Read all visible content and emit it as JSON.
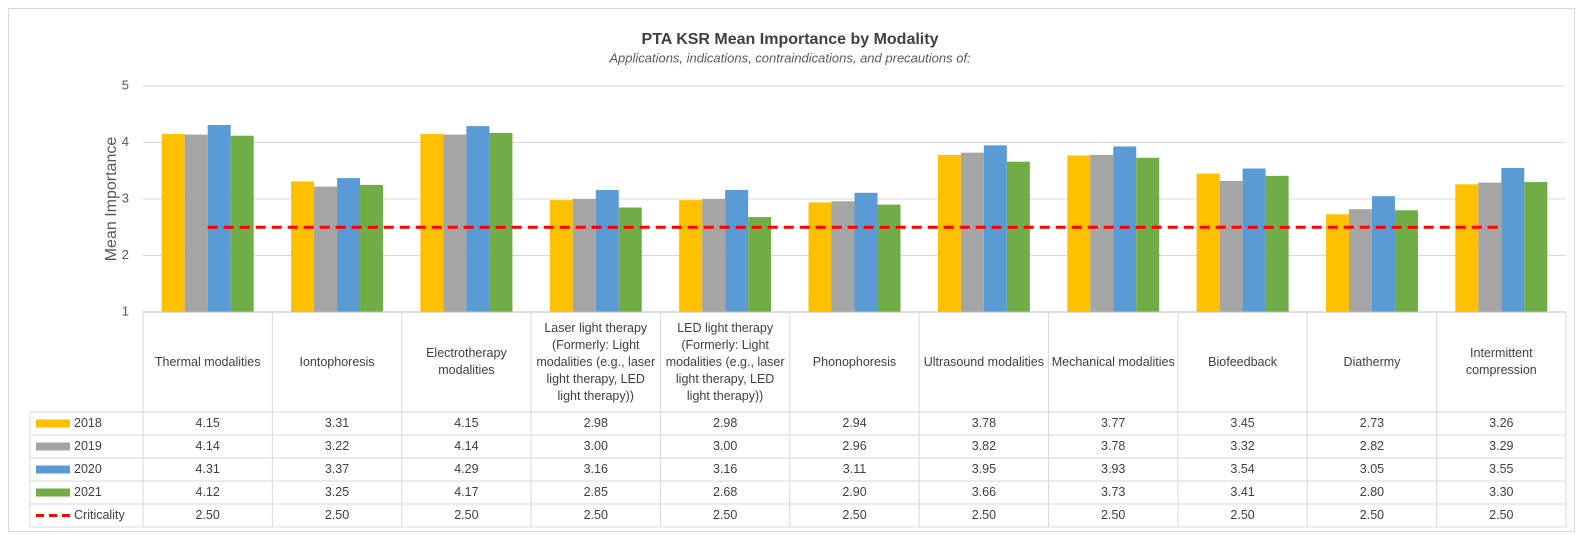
{
  "chart_data": {
    "type": "bar",
    "title": "PTA KSR Mean Importance by Modality",
    "subtitle": "Applications, indications, contraindications, and precautions of:",
    "y_label": "Mean Importance",
    "categories": [
      "Thermal modalities",
      "Iontophoresis",
      "Electrotherapy modalities",
      "Laser light therapy (Formerly: Light modalities (e.g., laser light therapy, LED light therapy))",
      "LED light therapy (Formerly: Light modalities (e.g., laser light therapy, LED light therapy))",
      "Phonophoresis",
      "Ultrasound modalities",
      "Mechanical modalities",
      "Biofeedback",
      "Diathermy",
      "Intermittent compression"
    ],
    "series": [
      {
        "name": "2018",
        "color": "#ffc000",
        "values": [
          4.15,
          3.31,
          4.15,
          2.98,
          2.98,
          2.94,
          3.78,
          3.77,
          3.45,
          2.73,
          3.26
        ],
        "value_labels": [
          "4.15",
          "3.31",
          "4.15",
          "2.98",
          "2.98",
          "2.94",
          "3.78",
          "3.77",
          "3.45",
          "2.73",
          "3.26"
        ]
      },
      {
        "name": "2019",
        "color": "#a5a5a5",
        "values": [
          4.14,
          3.22,
          4.14,
          3.0,
          3.0,
          2.96,
          3.82,
          3.78,
          3.32,
          2.82,
          3.29
        ],
        "value_labels": [
          "4.14",
          "3.22",
          "4.14",
          "3.00",
          "3.00",
          "2.96",
          "3.82",
          "3.78",
          "3.32",
          "2.82",
          "3.29"
        ]
      },
      {
        "name": "2020",
        "color": "#5b9bd5",
        "values": [
          4.31,
          3.37,
          4.29,
          3.16,
          3.16,
          3.11,
          3.95,
          3.93,
          3.54,
          3.05,
          3.55
        ],
        "value_labels": [
          "4.31",
          "3.37",
          "4.29",
          "3.16",
          "3.16",
          "3.11",
          "3.95",
          "3.93",
          "3.54",
          "3.05",
          "3.55"
        ]
      },
      {
        "name": "2021",
        "color": "#70ad47",
        "values": [
          4.12,
          3.25,
          4.17,
          2.85,
          2.68,
          2.9,
          3.66,
          3.73,
          3.41,
          2.8,
          3.3
        ],
        "value_labels": [
          "4.12",
          "3.25",
          "4.17",
          "2.85",
          "2.68",
          "2.90",
          "3.66",
          "3.73",
          "3.41",
          "2.80",
          "3.30"
        ]
      },
      {
        "name": "Criticality",
        "type": "line",
        "dashed": true,
        "color": "#ff0000",
        "values": [
          2.5,
          2.5,
          2.5,
          2.5,
          2.5,
          2.5,
          2.5,
          2.5,
          2.5,
          2.5,
          2.5
        ],
        "value_labels": [
          "2.50",
          "2.50",
          "2.50",
          "2.50",
          "2.50",
          "2.50",
          "2.50",
          "2.50",
          "2.50",
          "2.50",
          "2.50"
        ]
      }
    ],
    "ylim": [
      1,
      5
    ],
    "yticks": [
      1,
      2,
      3,
      4,
      5
    ],
    "grid": true,
    "data_table": true
  }
}
